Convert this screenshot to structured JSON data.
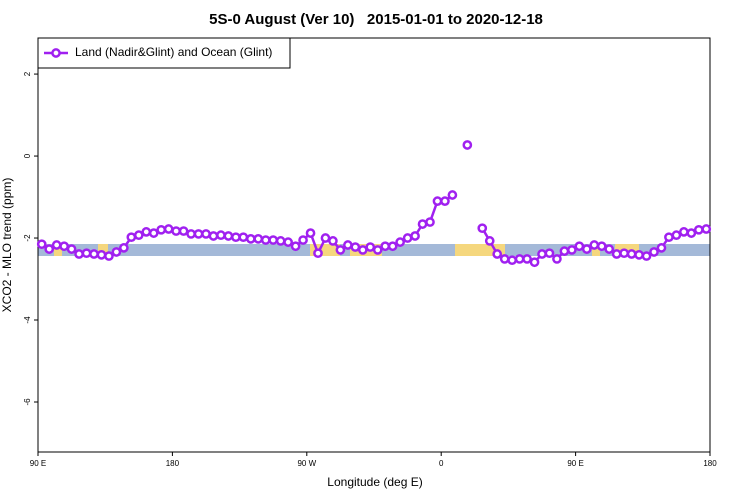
{
  "chart_data": {
    "type": "line",
    "title": "5S-0 August (Ver 10)   2015-01-01 to 2020-12-18",
    "x_label": "Longitude (deg E)",
    "y_label": "XCO2 - MLO trend (ppm)",
    "x": [
      92.5,
      97.5,
      102.5,
      107.5,
      112.5,
      117.5,
      122.5,
      127.5,
      132.5,
      137.5,
      142.5,
      147.5,
      152.5,
      157.5,
      162.5,
      167.5,
      172.5,
      177.5,
      182.5,
      187.5,
      192.5,
      197.5,
      202.5,
      207.5,
      212.5,
      217.5,
      222.5,
      227.5,
      232.5,
      237.5,
      242.5,
      247.5,
      252.5,
      257.5,
      262.5,
      267.5,
      272.5,
      277.5,
      282.5,
      287.5,
      292.5,
      297.5,
      302.5,
      307.5,
      312.5,
      317.5,
      322.5,
      327.5,
      332.5,
      337.5,
      342.5,
      347.5,
      352.5,
      357.5,
      362.5,
      367.5,
      372.5,
      377.5,
      382.5,
      387.5,
      392.5,
      397.5,
      402.5,
      407.5,
      412.5,
      417.5,
      422.5,
      427.5,
      432.5,
      437.5,
      442.5,
      447.5,
      452.5,
      457.5,
      462.5,
      467.5,
      472.5,
      477.5,
      482.5,
      487.5,
      492.5,
      497.5,
      502.5,
      507.5,
      512.5,
      517.5,
      522.5,
      527.5,
      532.5,
      537.5
    ],
    "series": [
      {
        "name": "Land (Nadir&Glint) and Ocean (Glint)",
        "color": "#a020f0",
        "values": [
          -2.15,
          -2.27,
          -2.17,
          -2.2,
          -2.27,
          -2.39,
          -2.37,
          -2.39,
          -2.41,
          -2.44,
          -2.34,
          -2.24,
          -1.98,
          -1.93,
          -1.85,
          -1.88,
          -1.8,
          -1.78,
          -1.83,
          -1.83,
          -1.9,
          -1.9,
          -1.9,
          -1.95,
          -1.93,
          -1.95,
          -1.98,
          -1.98,
          -2.02,
          -2.02,
          -2.05,
          -2.05,
          -2.07,
          -2.1,
          -2.2,
          -2.05,
          -1.88,
          -2.37,
          -2.0,
          -2.07,
          -2.29,
          -2.17,
          -2.22,
          -2.29,
          -2.22,
          -2.29,
          -2.2,
          -2.2,
          -2.1,
          -2.0,
          -1.95,
          -1.66,
          -1.61,
          -1.1,
          -1.1,
          -0.95,
          null,
          0.27,
          null,
          -1.76,
          -2.07,
          -2.39,
          -2.51,
          -2.54,
          -2.51,
          -2.51,
          -2.59,
          -2.39,
          -2.37,
          -2.51,
          -2.32,
          -2.29,
          -2.2,
          -2.27,
          -2.17,
          -2.2,
          -2.27,
          -2.39,
          -2.37,
          -2.39,
          -2.41,
          -2.44,
          -2.34,
          -2.24,
          -1.98,
          -1.93,
          -1.85,
          -1.88,
          -1.8,
          -1.78
        ]
      }
    ],
    "xlim": [
      90,
      540
    ],
    "xticks": [
      {
        "value": 90,
        "label": "90 E"
      },
      180,
      {
        "value": 270,
        "label": "90 W"
      },
      {
        "value": 360,
        "label": "0"
      },
      {
        "value": 450,
        "label": "90 E"
      },
      {
        "value": 540,
        "label": "180"
      }
    ],
    "ylim": [
      -7.22,
      2.88
    ],
    "yticks": [
      2,
      0,
      -2,
      -4,
      -6
    ],
    "legend": "top-left"
  }
}
